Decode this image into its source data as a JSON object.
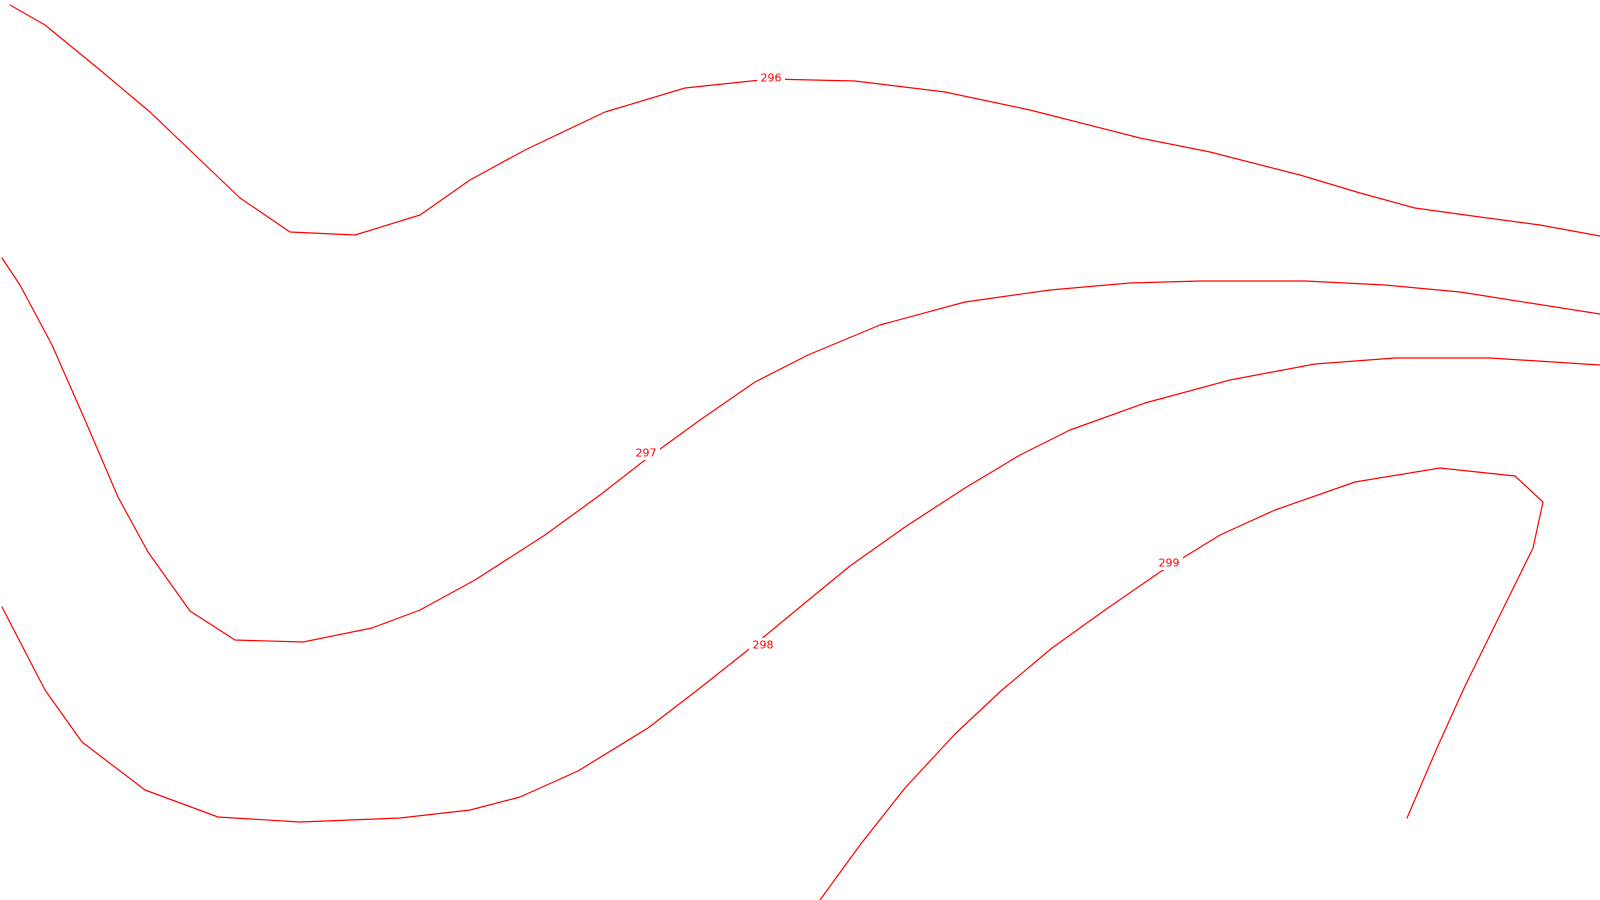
{
  "map": {
    "line_color": "#ff0000",
    "background_color": "#ffffff",
    "contours": [
      {
        "value": 296,
        "label": "296"
      },
      {
        "value": 297,
        "label": "297"
      },
      {
        "value": 298,
        "label": "298"
      },
      {
        "value": 299,
        "label": "299"
      }
    ]
  }
}
